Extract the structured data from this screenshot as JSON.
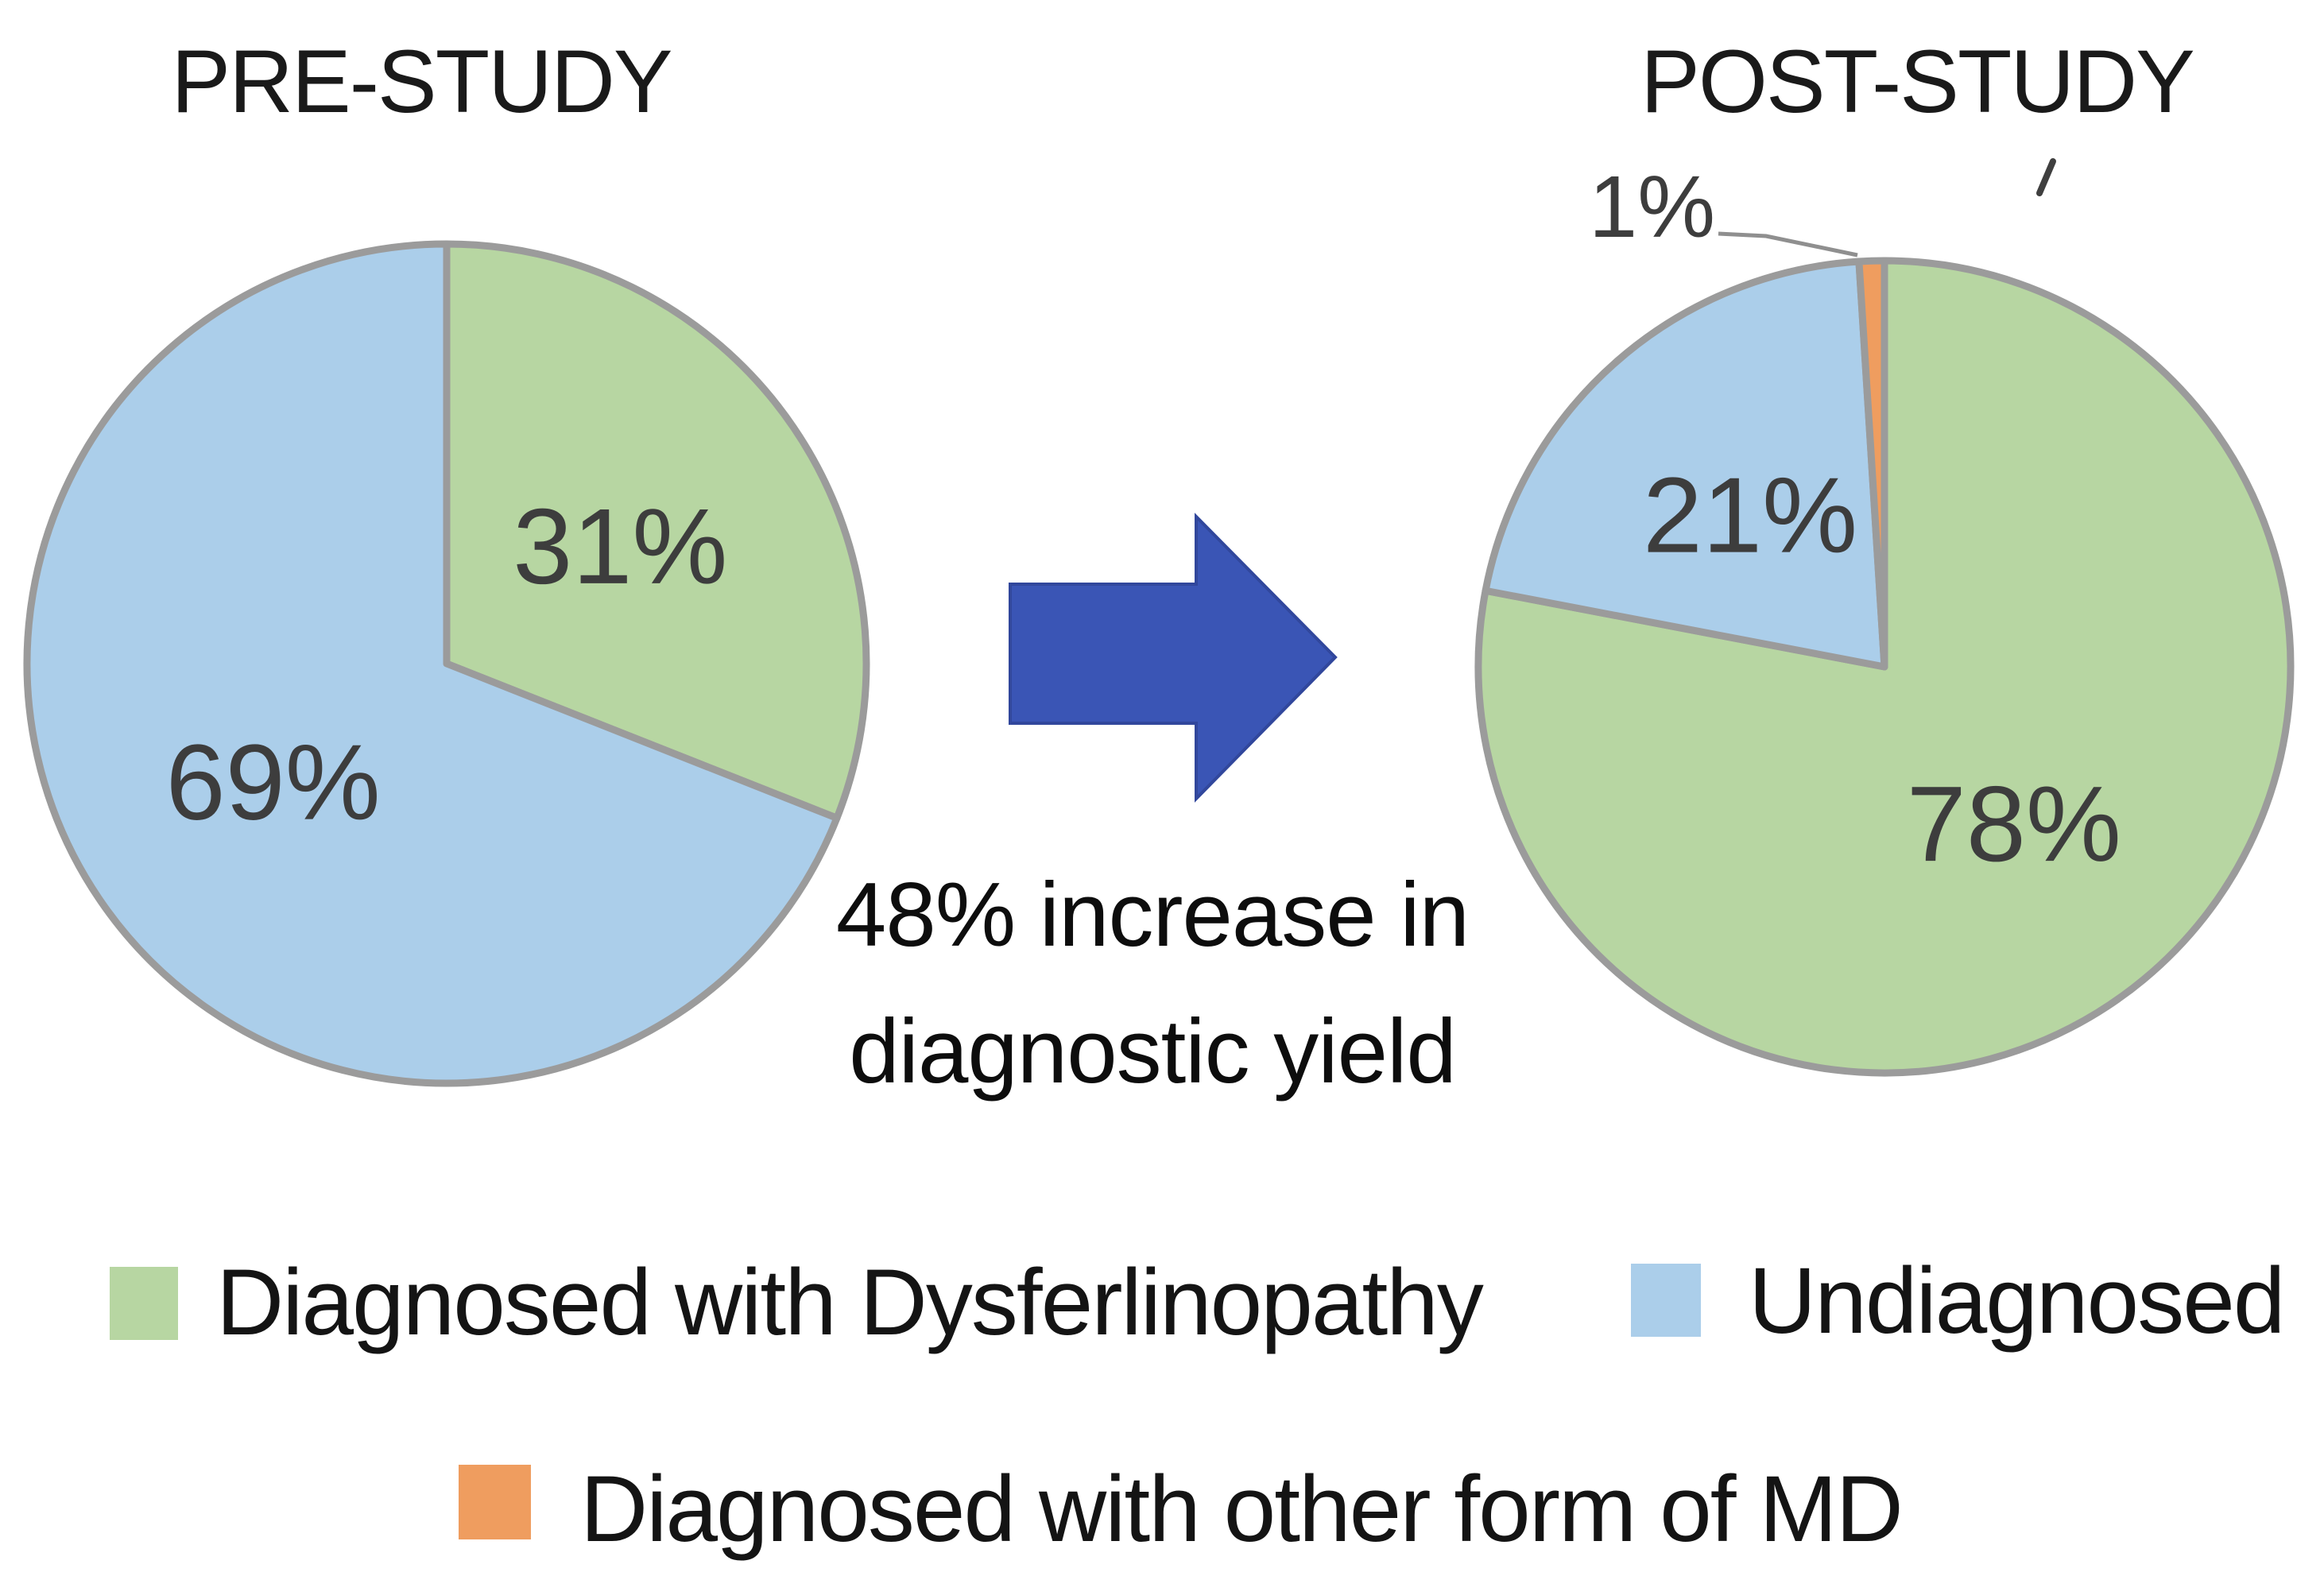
{
  "colors": {
    "green": "#b7d6a2",
    "blue": "#abceea",
    "orange": "#ef9d5f",
    "arrow_blue": "#3a55b5",
    "pie_stroke": "#9b9b9b",
    "value_label_text": "#3d3d3d"
  },
  "chart_data": [
    {
      "type": "pie",
      "title": "PRE-STUDY",
      "units": "percent",
      "start_angle_deg": 0,
      "direction": "clockwise",
      "legend_position": "bottom",
      "slices": [
        {
          "label": "Diagnosed with Dysferlinopathy",
          "value": 31,
          "value_label": "31%",
          "color_key": "green"
        },
        {
          "label": "Undiagnosed",
          "value": 69,
          "value_label": "69%",
          "color_key": "blue"
        }
      ]
    },
    {
      "type": "pie",
      "title": "POST-STUDY",
      "units": "percent",
      "start_angle_deg": 0,
      "direction": "clockwise",
      "legend_position": "bottom",
      "slices": [
        {
          "label": "Diagnosed with Dysferlinopathy",
          "value": 78,
          "value_label": "78%",
          "color_key": "green"
        },
        {
          "label": "Undiagnosed",
          "value": 21,
          "value_label": "21%",
          "color_key": "blue"
        },
        {
          "label": "Diagnosed with other form of MD",
          "value": 1,
          "value_label": "1%",
          "color_key": "orange",
          "label_position": "outside"
        }
      ]
    }
  ],
  "annotation": {
    "line1": "48% increase in",
    "line2": "diagnostic yield"
  },
  "legend": {
    "items": [
      {
        "color_key": "green",
        "label": "Diagnosed with Dysferlinopathy"
      },
      {
        "color_key": "blue",
        "label": "Undiagnosed"
      },
      {
        "color_key": "orange",
        "label": "Diagnosed with other form of MD"
      }
    ]
  }
}
